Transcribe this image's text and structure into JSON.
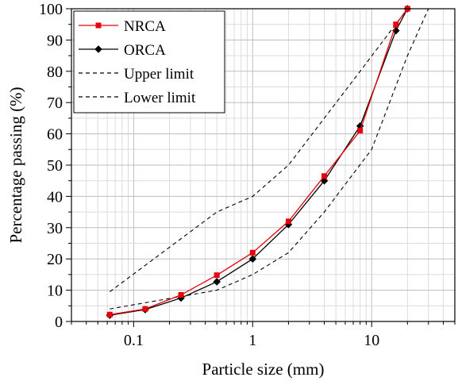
{
  "chart_data": {
    "type": "line",
    "title": "",
    "xlabel": "Particle size (mm)",
    "ylabel": "Percentage passing (%)",
    "xscale": "log",
    "xlim": [
      0.03,
      50
    ],
    "ylim": [
      0,
      100
    ],
    "x_ticks": [
      0.1,
      1,
      10
    ],
    "x_tick_labels": [
      "0.1",
      "1",
      "10"
    ],
    "y_ticks": [
      0,
      10,
      20,
      30,
      40,
      50,
      60,
      70,
      80,
      90,
      100
    ],
    "y_tick_labels": [
      "0",
      "10",
      "20",
      "30",
      "40",
      "50",
      "60",
      "70",
      "80",
      "90",
      "100"
    ],
    "grid": true,
    "legend_position": "top-left",
    "series": [
      {
        "name": "NRCA",
        "color": "#e8000b",
        "marker": "square",
        "line": "solid",
        "x": [
          0.063,
          0.125,
          0.25,
          0.5,
          1,
          2,
          4,
          8,
          16,
          20
        ],
        "y": [
          2.2,
          4.0,
          8.5,
          14.8,
          22.0,
          32.0,
          46.5,
          61.0,
          95.0,
          100.0
        ]
      },
      {
        "name": "ORCA",
        "color": "#000000",
        "marker": "diamond",
        "line": "solid",
        "x": [
          0.063,
          0.125,
          0.25,
          0.5,
          1,
          2,
          4,
          8,
          16,
          20
        ],
        "y": [
          2.0,
          3.8,
          7.5,
          12.7,
          20.0,
          31.0,
          45.0,
          62.5,
          93.0,
          100.0
        ]
      },
      {
        "name": "Upper limit",
        "color": "#000000",
        "marker": "none",
        "line": "dashed",
        "x": [
          0.063,
          0.5,
          1,
          2,
          4,
          8,
          20
        ],
        "y": [
          9.5,
          35.0,
          40.0,
          50.0,
          65.0,
          80.0,
          100.0
        ]
      },
      {
        "name": "Lower limit",
        "color": "#000000",
        "marker": "none",
        "line": "dashed",
        "x": [
          0.063,
          0.5,
          1,
          2,
          4,
          10,
          20,
          30
        ],
        "y": [
          4.0,
          10.0,
          15.0,
          22.0,
          35.0,
          55.0,
          85.0,
          100.0
        ]
      }
    ]
  }
}
